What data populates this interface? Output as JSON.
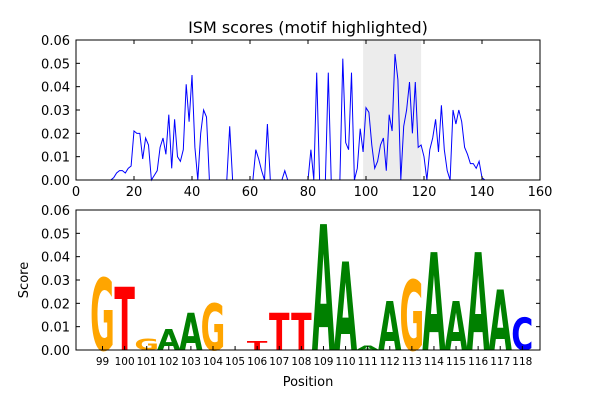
{
  "chart_data": [
    {
      "type": "line",
      "title": "ISM scores (motif highlighted)",
      "xlim": [
        0,
        160
      ],
      "ylim": [
        0,
        0.06
      ],
      "x_ticks": [
        0,
        20,
        40,
        60,
        80,
        100,
        120,
        140,
        160
      ],
      "y_ticks": [
        0.0,
        0.01,
        0.02,
        0.03,
        0.04,
        0.05,
        0.06
      ],
      "x_tick_labels": [
        "0",
        "20",
        "40",
        "60",
        "80",
        "100",
        "120",
        "140",
        "160"
      ],
      "y_tick_labels": [
        "0.00",
        "0.01",
        "0.02",
        "0.03",
        "0.04",
        "0.05",
        "0.06"
      ],
      "highlight": {
        "x_start": 99,
        "x_end": 119,
        "color": "#ececec"
      },
      "series": [
        {
          "color": "#0000ff",
          "points": [
            [
              0,
              0
            ],
            [
              12,
              0
            ],
            [
              13,
              0.001
            ],
            [
              14,
              0.003
            ],
            [
              15,
              0.004
            ],
            [
              16,
              0.004
            ],
            [
              17,
              0.003
            ],
            [
              18,
              0.005
            ],
            [
              19,
              0.006
            ],
            [
              20,
              0.021
            ],
            [
              21,
              0.02
            ],
            [
              22,
              0.02
            ],
            [
              23,
              0.009
            ],
            [
              24,
              0.018
            ],
            [
              25,
              0.015
            ],
            [
              26,
              0
            ],
            [
              27,
              0.002
            ],
            [
              28,
              0.004
            ],
            [
              29,
              0.014
            ],
            [
              30,
              0.018
            ],
            [
              31,
              0.011
            ],
            [
              32,
              0.028
            ],
            [
              33,
              0.005
            ],
            [
              34,
              0.026
            ],
            [
              35,
              0.01
            ],
            [
              36,
              0.008
            ],
            [
              37,
              0.013
            ],
            [
              38,
              0.041
            ],
            [
              39,
              0.025
            ],
            [
              40,
              0.045
            ],
            [
              41,
              0.014
            ],
            [
              42,
              0
            ],
            [
              43,
              0.02
            ],
            [
              44,
              0.03
            ],
            [
              45,
              0.027
            ],
            [
              46,
              0
            ],
            [
              52,
              0
            ],
            [
              53,
              0.023
            ],
            [
              54,
              0
            ],
            [
              61,
              0
            ],
            [
              62,
              0.013
            ],
            [
              63,
              0.009
            ],
            [
              64,
              0.004
            ],
            [
              65,
              0
            ],
            [
              66,
              0.024
            ],
            [
              67,
              0
            ],
            [
              71,
              0
            ],
            [
              72,
              0.004
            ],
            [
              73,
              0
            ],
            [
              80,
              0
            ],
            [
              81,
              0.013
            ],
            [
              82,
              0
            ],
            [
              83,
              0.046
            ],
            [
              84,
              0
            ],
            [
              86,
              0
            ],
            [
              87,
              0.046
            ],
            [
              88,
              0
            ],
            [
              91,
              0
            ],
            [
              92,
              0.052
            ],
            [
              93,
              0.016
            ],
            [
              94,
              0.013
            ],
            [
              95,
              0.046
            ],
            [
              96,
              0
            ],
            [
              97,
              0.005
            ],
            [
              98,
              0.022
            ],
            [
              99,
              0.012
            ],
            [
              100,
              0.031
            ],
            [
              101,
              0.029
            ],
            [
              102,
              0.015
            ],
            [
              103,
              0.005
            ],
            [
              104,
              0.008
            ],
            [
              105,
              0.015
            ],
            [
              106,
              0.018
            ],
            [
              107,
              0.004
            ],
            [
              108,
              0.028
            ],
            [
              109,
              0.021
            ],
            [
              110,
              0.054
            ],
            [
              111,
              0.043
            ],
            [
              112,
              0
            ],
            [
              113,
              0.023
            ],
            [
              114,
              0.03
            ],
            [
              115,
              0.042
            ],
            [
              116,
              0.02
            ],
            [
              117,
              0.042
            ],
            [
              118,
              0.014
            ],
            [
              119,
              0.015
            ],
            [
              120,
              0.01
            ],
            [
              121,
              0
            ],
            [
              122,
              0.013
            ],
            [
              123,
              0.018
            ],
            [
              124,
              0.026
            ],
            [
              125,
              0.012
            ],
            [
              126,
              0.032
            ],
            [
              127,
              0.013
            ],
            [
              128,
              0.004
            ],
            [
              129,
              0
            ],
            [
              130,
              0.03
            ],
            [
              131,
              0.024
            ],
            [
              132,
              0.03
            ],
            [
              133,
              0.025
            ],
            [
              134,
              0.014
            ],
            [
              135,
              0.011
            ],
            [
              136,
              0.007
            ],
            [
              137,
              0.007
            ],
            [
              138,
              0.005
            ],
            [
              139,
              0.008
            ],
            [
              140,
              0.001
            ],
            [
              141,
              0
            ],
            [
              145,
              0
            ]
          ]
        }
      ]
    },
    {
      "type": "sequence_logo",
      "xlabel": "Position",
      "ylabel": "Score",
      "ylim": [
        0,
        0.06
      ],
      "y_ticks": [
        0.0,
        0.01,
        0.02,
        0.03,
        0.04,
        0.05,
        0.06
      ],
      "y_tick_labels": [
        "0.00",
        "0.01",
        "0.02",
        "0.03",
        "0.04",
        "0.05",
        "0.06"
      ],
      "colors": {
        "A": "#008000",
        "C": "#0000ff",
        "G": "#ffa500",
        "T": "#ff0000"
      },
      "positions": [
        {
          "pos": "99",
          "base": "G",
          "value": 0.031
        },
        {
          "pos": "100",
          "base": "T",
          "value": 0.027
        },
        {
          "pos": "101",
          "base": "G",
          "value": 0.005
        },
        {
          "pos": "102",
          "base": "A",
          "value": 0.009
        },
        {
          "pos": "103",
          "base": "A",
          "value": 0.016
        },
        {
          "pos": "104",
          "base": "G",
          "value": 0.02
        },
        {
          "pos": "105",
          "base": "",
          "value": 0
        },
        {
          "pos": "106",
          "base": "T",
          "value": 0.004
        },
        {
          "pos": "107",
          "base": "T",
          "value": 0.016
        },
        {
          "pos": "108",
          "base": "T",
          "value": 0.016
        },
        {
          "pos": "109",
          "base": "A",
          "value": 0.054
        },
        {
          "pos": "110",
          "base": "A",
          "value": 0.038
        },
        {
          "pos": "111",
          "base": "A",
          "value": 0.002
        },
        {
          "pos": "112",
          "base": "A",
          "value": 0.021
        },
        {
          "pos": "113",
          "base": "G",
          "value": 0.03
        },
        {
          "pos": "114",
          "base": "A",
          "value": 0.042
        },
        {
          "pos": "115",
          "base": "A",
          "value": 0.021
        },
        {
          "pos": "116",
          "base": "A",
          "value": 0.042
        },
        {
          "pos": "117",
          "base": "A",
          "value": 0.026
        },
        {
          "pos": "118",
          "base": "C",
          "value": 0.014
        }
      ]
    }
  ]
}
